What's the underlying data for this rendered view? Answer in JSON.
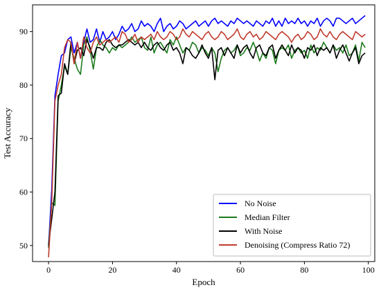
{
  "chart_data": {
    "type": "line",
    "title": "",
    "xlabel": "Epoch",
    "ylabel": "Test Accuracy",
    "xlim": [
      -5,
      102
    ],
    "ylim": [
      47,
      95
    ],
    "xticks": [
      0,
      20,
      40,
      60,
      80,
      100
    ],
    "yticks": [
      50,
      60,
      70,
      80,
      90
    ],
    "grid": false,
    "legend_position": "lower-right",
    "x": [
      0,
      1,
      2,
      3,
      4,
      5,
      6,
      7,
      8,
      9,
      10,
      11,
      12,
      13,
      14,
      15,
      16,
      17,
      18,
      19,
      20,
      21,
      22,
      23,
      24,
      25,
      26,
      27,
      28,
      29,
      30,
      31,
      32,
      33,
      34,
      35,
      36,
      37,
      38,
      39,
      40,
      41,
      42,
      43,
      44,
      45,
      46,
      47,
      48,
      49,
      50,
      51,
      52,
      53,
      54,
      55,
      56,
      57,
      58,
      59,
      60,
      61,
      62,
      63,
      64,
      65,
      66,
      67,
      68,
      69,
      70,
      71,
      72,
      73,
      74,
      75,
      76,
      77,
      78,
      79,
      80,
      81,
      82,
      83,
      84,
      85,
      86,
      87,
      88,
      89,
      90,
      91,
      92,
      93,
      94,
      95,
      96,
      97,
      98,
      99
    ],
    "series": [
      {
        "name": "No Noise",
        "color": "#0000ff",
        "values": [
          49.8,
          60.5,
          78.0,
          82.0,
          85.5,
          86.0,
          88.5,
          89.0,
          86.0,
          88.0,
          85.0,
          88.0,
          90.5,
          88.0,
          88.5,
          90.5,
          88.0,
          90.0,
          88.5,
          89.0,
          90.0,
          88.5,
          89.5,
          91.0,
          90.0,
          90.5,
          91.5,
          90.0,
          90.5,
          92.0,
          91.0,
          91.5,
          91.0,
          90.0,
          91.5,
          92.5,
          90.0,
          91.0,
          91.5,
          90.5,
          91.0,
          92.0,
          91.5,
          90.5,
          91.0,
          91.5,
          92.0,
          91.0,
          91.5,
          92.0,
          91.0,
          92.0,
          92.5,
          91.5,
          92.0,
          91.5,
          91.0,
          92.0,
          91.5,
          92.5,
          92.0,
          91.5,
          92.0,
          91.5,
          91.0,
          92.0,
          91.5,
          91.0,
          92.0,
          91.5,
          92.5,
          91.0,
          92.0,
          91.0,
          92.5,
          91.5,
          92.0,
          91.5,
          92.5,
          91.5,
          92.0,
          91.0,
          92.0,
          91.5,
          92.5,
          91.0,
          92.0,
          92.5,
          92.0,
          91.0,
          92.5,
          92.5,
          92.0,
          91.5,
          92.0,
          92.5,
          91.5,
          92.0,
          92.5,
          93.0
        ]
      },
      {
        "name": "Median Filter",
        "color": "#1a7a1a",
        "values": [
          49.5,
          58.0,
          57.5,
          77.0,
          80.0,
          83.5,
          82.0,
          87.0,
          85.0,
          83.0,
          82.0,
          87.5,
          89.0,
          86.5,
          83.0,
          87.0,
          88.5,
          87.5,
          87.0,
          86.0,
          87.0,
          86.5,
          87.5,
          87.0,
          87.5,
          88.0,
          89.0,
          88.0,
          88.5,
          89.0,
          87.0,
          86.5,
          89.0,
          86.0,
          87.5,
          88.0,
          87.0,
          86.0,
          88.5,
          87.5,
          89.0,
          87.5,
          86.0,
          87.0,
          86.5,
          88.0,
          87.5,
          86.0,
          87.0,
          86.5,
          85.5,
          87.0,
          86.0,
          82.5,
          85.0,
          86.5,
          87.0,
          86.0,
          86.5,
          87.5,
          85.5,
          86.0,
          87.0,
          86.5,
          88.0,
          86.5,
          84.5,
          86.0,
          85.0,
          87.0,
          86.5,
          84.0,
          86.5,
          87.0,
          86.5,
          87.5,
          85.0,
          86.5,
          87.0,
          86.0,
          86.5,
          85.0,
          87.5,
          86.0,
          87.0,
          86.5,
          88.0,
          87.0,
          86.0,
          87.5,
          86.5,
          87.0,
          86.0,
          87.5,
          85.5,
          86.0,
          87.5,
          84.5,
          88.0,
          87.0
        ]
      },
      {
        "name": "With Noise",
        "color": "#000000",
        "values": [
          50.0,
          55.0,
          60.0,
          78.0,
          78.5,
          84.0,
          82.0,
          88.0,
          84.0,
          86.5,
          87.0,
          85.5,
          88.5,
          87.0,
          85.0,
          87.0,
          87.0,
          86.5,
          88.0,
          88.5,
          87.5,
          87.0,
          87.5,
          87.5,
          88.0,
          88.5,
          88.0,
          87.5,
          88.0,
          87.0,
          88.0,
          87.0,
          86.5,
          87.5,
          88.0,
          87.0,
          86.5,
          87.5,
          88.0,
          86.5,
          87.0,
          86.0,
          84.0,
          87.0,
          86.5,
          85.5,
          85.0,
          86.0,
          87.5,
          86.0,
          85.0,
          87.0,
          81.0,
          86.5,
          87.0,
          85.5,
          87.0,
          86.0,
          85.0,
          87.5,
          86.0,
          87.0,
          87.5,
          86.0,
          85.0,
          87.0,
          87.5,
          86.0,
          85.5,
          87.0,
          87.5,
          85.0,
          86.5,
          87.5,
          86.5,
          85.5,
          87.5,
          86.0,
          87.0,
          86.5,
          85.0,
          87.0,
          86.5,
          87.5,
          85.5,
          87.0,
          86.5,
          87.0,
          86.0,
          87.5,
          85.0,
          86.5,
          87.5,
          86.0,
          84.5,
          86.0,
          87.0,
          84.0,
          85.5,
          86.0
        ]
      },
      {
        "name": "Denoising (Compress Ratio 72)",
        "color": "#c0392b",
        "values": [
          47.8,
          58.0,
          77.0,
          80.0,
          82.0,
          87.0,
          88.5,
          88.0,
          84.0,
          88.0,
          85.0,
          89.0,
          87.0,
          86.0,
          88.0,
          89.0,
          87.5,
          88.0,
          88.5,
          88.0,
          88.5,
          89.0,
          88.0,
          90.0,
          89.5,
          88.0,
          88.5,
          89.5,
          88.0,
          89.0,
          88.5,
          89.0,
          89.5,
          88.5,
          90.0,
          89.0,
          88.5,
          89.0,
          90.0,
          89.5,
          88.5,
          89.0,
          90.5,
          89.5,
          89.0,
          90.0,
          89.5,
          89.0,
          88.5,
          89.5,
          90.0,
          89.0,
          88.5,
          89.0,
          90.0,
          89.5,
          88.5,
          89.0,
          89.5,
          90.5,
          89.0,
          88.5,
          89.5,
          90.0,
          89.0,
          89.5,
          88.5,
          89.0,
          90.0,
          89.5,
          89.0,
          88.5,
          89.5,
          90.0,
          89.5,
          89.0,
          88.0,
          89.0,
          89.5,
          88.5,
          89.0,
          90.0,
          89.5,
          88.5,
          89.0,
          90.5,
          89.5,
          89.0,
          90.0,
          89.0,
          88.5,
          89.5,
          90.0,
          89.5,
          89.0,
          88.5,
          90.0,
          89.5,
          89.0,
          89.5
        ]
      }
    ]
  }
}
